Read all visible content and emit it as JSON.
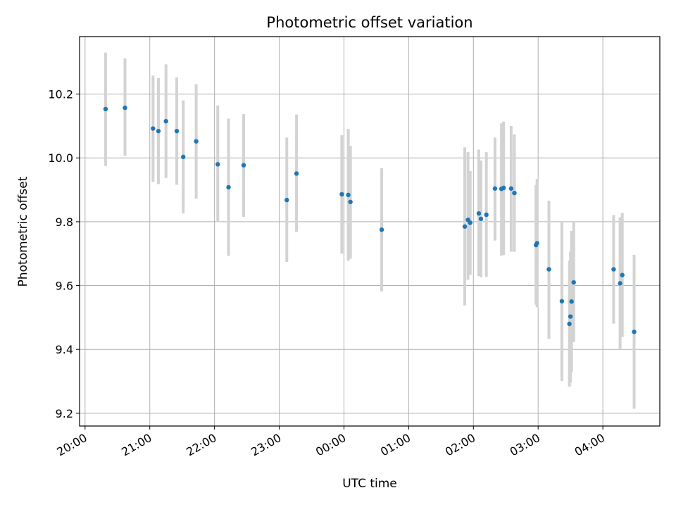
{
  "chart_data": {
    "type": "scatter",
    "title": "Photometric offset variation",
    "xlabel": "UTC time",
    "ylabel": "Photometric offset",
    "x_tick_labels": [
      "20:00",
      "21:00",
      "22:00",
      "23:00",
      "00:00",
      "01:00",
      "02:00",
      "03:00",
      "04:00"
    ],
    "x_ticks_hours": [
      0,
      1,
      2,
      3,
      4,
      5,
      6,
      7,
      8
    ],
    "y_ticks": [
      9.2,
      9.4,
      9.6,
      9.8,
      10.0,
      10.2
    ],
    "y_tick_labels": [
      "9.2",
      "9.4",
      "9.6",
      "9.8",
      "10.0",
      "10.2"
    ],
    "xlim_hours_after_20_00": [
      -0.085,
      8.88
    ],
    "ylim": [
      9.16,
      10.38
    ],
    "grid": true,
    "colors": {
      "point": "#1f77b4",
      "errorbar": "#d3d3d3",
      "grid": "#b0b0b0"
    },
    "points": [
      {
        "time": "20:19",
        "y": 10.153,
        "lo": 9.975,
        "hi": 10.33
      },
      {
        "time": "20:37",
        "y": 10.157,
        "lo": 10.007,
        "hi": 10.312
      },
      {
        "time": "21:03",
        "y": 10.092,
        "lo": 9.925,
        "hi": 10.258
      },
      {
        "time": "21:08",
        "y": 10.084,
        "lo": 9.918,
        "hi": 10.25
      },
      {
        "time": "21:15",
        "y": 10.115,
        "lo": 9.937,
        "hi": 10.293
      },
      {
        "time": "21:25",
        "y": 10.084,
        "lo": 9.916,
        "hi": 10.252
      },
      {
        "time": "21:31",
        "y": 10.003,
        "lo": 9.826,
        "hi": 10.18
      },
      {
        "time": "21:43",
        "y": 10.052,
        "lo": 9.872,
        "hi": 10.231
      },
      {
        "time": "22:03",
        "y": 9.98,
        "lo": 9.799,
        "hi": 10.164
      },
      {
        "time": "22:13",
        "y": 9.908,
        "lo": 9.693,
        "hi": 10.123
      },
      {
        "time": "22:27",
        "y": 9.977,
        "lo": 9.815,
        "hi": 10.137
      },
      {
        "time": "23:07",
        "y": 9.868,
        "lo": 9.674,
        "hi": 10.064
      },
      {
        "time": "23:16",
        "y": 9.951,
        "lo": 9.769,
        "hi": 10.136
      },
      {
        "time": "23:58",
        "y": 9.886,
        "lo": 9.7,
        "hi": 10.071
      },
      {
        "time": "00:04",
        "y": 9.884,
        "lo": 9.678,
        "hi": 10.091
      },
      {
        "time": "00:06",
        "y": 9.862,
        "lo": 9.684,
        "hi": 10.038
      },
      {
        "time": "00:35",
        "y": 9.775,
        "lo": 9.582,
        "hi": 9.968
      },
      {
        "time": "01:52",
        "y": 9.785,
        "lo": 9.538,
        "hi": 10.033
      },
      {
        "time": "01:55",
        "y": 9.806,
        "lo": 9.618,
        "hi": 10.018
      },
      {
        "time": "01:57",
        "y": 9.797,
        "lo": 9.634,
        "hi": 9.959
      },
      {
        "time": "02:05",
        "y": 9.826,
        "lo": 9.63,
        "hi": 10.026
      },
      {
        "time": "02:07",
        "y": 9.809,
        "lo": 9.626,
        "hi": 9.992
      },
      {
        "time": "02:12",
        "y": 9.822,
        "lo": 9.628,
        "hi": 10.018
      },
      {
        "time": "02:20",
        "y": 9.904,
        "lo": 9.741,
        "hi": 10.064
      },
      {
        "time": "02:26",
        "y": 9.903,
        "lo": 9.694,
        "hi": 10.108
      },
      {
        "time": "02:28",
        "y": 9.906,
        "lo": 9.696,
        "hi": 10.114
      },
      {
        "time": "02:35",
        "y": 9.904,
        "lo": 9.706,
        "hi": 10.1
      },
      {
        "time": "02:38",
        "y": 9.89,
        "lo": 9.706,
        "hi": 10.074
      },
      {
        "time": "02:58",
        "y": 9.727,
        "lo": 9.54,
        "hi": 9.915
      },
      {
        "time": "02:59",
        "y": 9.733,
        "lo": 9.532,
        "hi": 9.934
      },
      {
        "time": "03:10",
        "y": 9.651,
        "lo": 9.433,
        "hi": 9.866
      },
      {
        "time": "03:22",
        "y": 9.551,
        "lo": 9.301,
        "hi": 9.8
      },
      {
        "time": "03:29",
        "y": 9.48,
        "lo": 9.283,
        "hi": 9.678
      },
      {
        "time": "03:30",
        "y": 9.503,
        "lo": 9.295,
        "hi": 9.706
      },
      {
        "time": "03:31",
        "y": 9.55,
        "lo": 9.33,
        "hi": 9.771
      },
      {
        "time": "03:33",
        "y": 9.61,
        "lo": 9.423,
        "hi": 9.8
      },
      {
        "time": "04:10",
        "y": 9.651,
        "lo": 9.481,
        "hi": 9.821
      },
      {
        "time": "04:16",
        "y": 9.607,
        "lo": 9.402,
        "hi": 9.814
      },
      {
        "time": "04:18",
        "y": 9.633,
        "lo": 9.439,
        "hi": 9.828
      },
      {
        "time": "04:29",
        "y": 9.455,
        "lo": 9.214,
        "hi": 9.696
      }
    ]
  }
}
